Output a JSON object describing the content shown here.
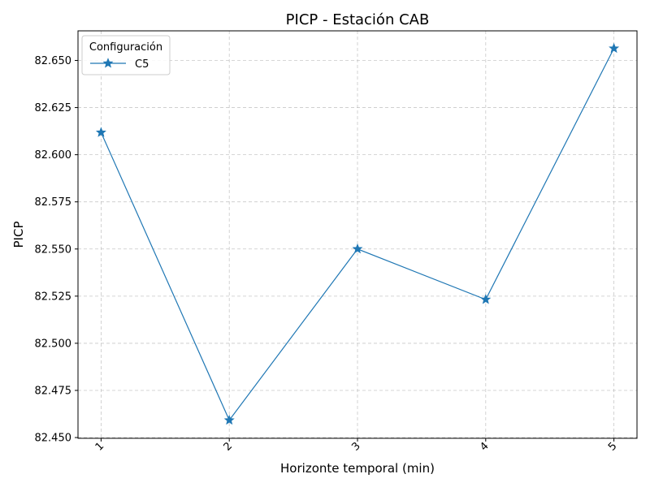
{
  "chart_data": {
    "type": "line",
    "title": "PICP - Estación CAB",
    "xlabel": "Horizonte temporal (min)",
    "ylabel": "PICP",
    "x": [
      1,
      2,
      3,
      4,
      5
    ],
    "x_tick_labels": [
      "1",
      "2",
      "3",
      "4",
      "5"
    ],
    "y_ticks": [
      82.45,
      82.475,
      82.5,
      82.525,
      82.55,
      82.575,
      82.6,
      82.625,
      82.65
    ],
    "y_tick_labels": [
      "82.450",
      "82.475",
      "82.500",
      "82.525",
      "82.550",
      "82.575",
      "82.600",
      "82.625",
      "82.650"
    ],
    "xlim": [
      0.82,
      5.18
    ],
    "ylim": [
      82.4496,
      82.6657
    ],
    "grid": true,
    "legend": {
      "title": "Configuración",
      "placement": "top-left"
    },
    "series": [
      {
        "name": "C5",
        "marker": "star",
        "color": "#1f77b4",
        "values": [
          82.6118,
          82.4592,
          82.55,
          82.5232,
          82.6564
        ]
      }
    ]
  }
}
